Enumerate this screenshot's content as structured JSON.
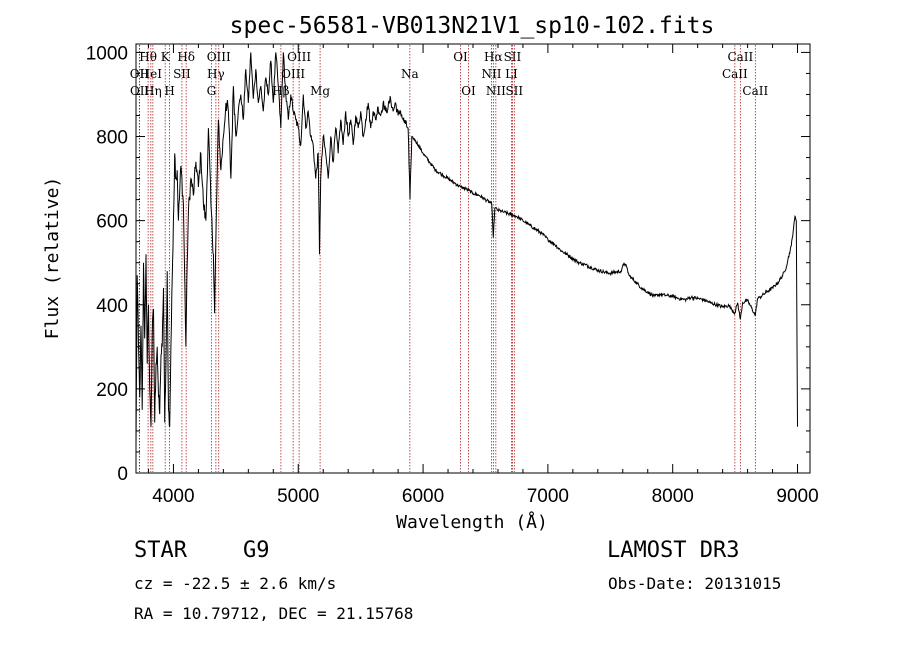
{
  "chart_data": {
    "type": "line",
    "title": "spec-56581-VB013N21V1_sp10-102.fits",
    "xlabel": "Wavelength (Å)",
    "ylabel": "Flux (relative)",
    "xlim": [
      3700,
      9100
    ],
    "ylim": [
      0,
      1020
    ],
    "xticks": [
      4000,
      5000,
      6000,
      7000,
      8000,
      9000
    ],
    "yticks": [
      0,
      200,
      400,
      600,
      800,
      1000
    ],
    "grid": false,
    "spectrum_anchors": [
      [
        3700,
        60
      ],
      [
        3710,
        470
      ],
      [
        3720,
        300
      ],
      [
        3730,
        180
      ],
      [
        3740,
        350
      ],
      [
        3750,
        150
      ],
      [
        3760,
        500
      ],
      [
        3770,
        320
      ],
      [
        3780,
        520
      ],
      [
        3790,
        260
      ],
      [
        3800,
        400
      ],
      [
        3810,
        200
      ],
      [
        3820,
        110
      ],
      [
        3830,
        330
      ],
      [
        3840,
        390
      ],
      [
        3850,
        120
      ],
      [
        3860,
        260
      ],
      [
        3870,
        300
      ],
      [
        3880,
        180
      ],
      [
        3890,
        140
      ],
      [
        3900,
        280
      ],
      [
        3910,
        300
      ],
      [
        3920,
        440
      ],
      [
        3930,
        120
      ],
      [
        3940,
        260
      ],
      [
        3950,
        480
      ],
      [
        3960,
        150
      ],
      [
        3970,
        110
      ],
      [
        3980,
        300
      ],
      [
        3990,
        460
      ],
      [
        4000,
        600
      ],
      [
        4010,
        760
      ],
      [
        4020,
        700
      ],
      [
        4030,
        720
      ],
      [
        4040,
        600
      ],
      [
        4060,
        730
      ],
      [
        4080,
        640
      ],
      [
        4100,
        300
      ],
      [
        4110,
        500
      ],
      [
        4120,
        620
      ],
      [
        4140,
        700
      ],
      [
        4160,
        660
      ],
      [
        4180,
        740
      ],
      [
        4200,
        680
      ],
      [
        4220,
        760
      ],
      [
        4240,
        640
      ],
      [
        4260,
        600
      ],
      [
        4280,
        820
      ],
      [
        4300,
        640
      ],
      [
        4320,
        520
      ],
      [
        4330,
        380
      ],
      [
        4340,
        560
      ],
      [
        4360,
        840
      ],
      [
        4380,
        720
      ],
      [
        4400,
        800
      ],
      [
        4420,
        880
      ],
      [
        4440,
        860
      ],
      [
        4460,
        700
      ],
      [
        4480,
        920
      ],
      [
        4500,
        800
      ],
      [
        4520,
        860
      ],
      [
        4540,
        900
      ],
      [
        4560,
        840
      ],
      [
        4580,
        960
      ],
      [
        4600,
        880
      ],
      [
        4620,
        1000
      ],
      [
        4640,
        890
      ],
      [
        4660,
        960
      ],
      [
        4680,
        880
      ],
      [
        4700,
        920
      ],
      [
        4720,
        860
      ],
      [
        4740,
        940
      ],
      [
        4760,
        900
      ],
      [
        4780,
        980
      ],
      [
        4800,
        880
      ],
      [
        4820,
        1000
      ],
      [
        4840,
        920
      ],
      [
        4860,
        820
      ],
      [
        4880,
        1000
      ],
      [
        4900,
        900
      ],
      [
        4920,
        840
      ],
      [
        4940,
        900
      ],
      [
        4960,
        860
      ],
      [
        4980,
        840
      ],
      [
        5000,
        820
      ],
      [
        5020,
        780
      ],
      [
        5040,
        900
      ],
      [
        5060,
        820
      ],
      [
        5080,
        860
      ],
      [
        5100,
        800
      ],
      [
        5120,
        780
      ],
      [
        5140,
        700
      ],
      [
        5160,
        760
      ],
      [
        5170,
        520
      ],
      [
        5180,
        700
      ],
      [
        5200,
        800
      ],
      [
        5220,
        760
      ],
      [
        5240,
        700
      ],
      [
        5260,
        800
      ],
      [
        5280,
        740
      ],
      [
        5300,
        820
      ],
      [
        5320,
        760
      ],
      [
        5340,
        840
      ],
      [
        5360,
        780
      ],
      [
        5380,
        860
      ],
      [
        5400,
        800
      ],
      [
        5420,
        840
      ],
      [
        5440,
        780
      ],
      [
        5460,
        850
      ],
      [
        5480,
        820
      ],
      [
        5500,
        860
      ],
      [
        5520,
        800
      ],
      [
        5540,
        840
      ],
      [
        5560,
        880
      ],
      [
        5580,
        820
      ],
      [
        5600,
        860
      ],
      [
        5620,
        840
      ],
      [
        5640,
        870
      ],
      [
        5660,
        850
      ],
      [
        5680,
        880
      ],
      [
        5700,
        860
      ],
      [
        5720,
        870
      ],
      [
        5740,
        890
      ],
      [
        5760,
        860
      ],
      [
        5780,
        880
      ],
      [
        5800,
        850
      ],
      [
        5820,
        860
      ],
      [
        5840,
        840
      ],
      [
        5860,
        830
      ],
      [
        5880,
        820
      ],
      [
        5895,
        650
      ],
      [
        5910,
        800
      ],
      [
        5940,
        790
      ],
      [
        5960,
        780
      ],
      [
        6000,
        760
      ],
      [
        6050,
        740
      ],
      [
        6100,
        720
      ],
      [
        6150,
        710
      ],
      [
        6200,
        700
      ],
      [
        6250,
        690
      ],
      [
        6300,
        680
      ],
      [
        6350,
        675
      ],
      [
        6400,
        665
      ],
      [
        6450,
        660
      ],
      [
        6500,
        650
      ],
      [
        6550,
        640
      ],
      [
        6563,
        560
      ],
      [
        6575,
        630
      ],
      [
        6600,
        625
      ],
      [
        6650,
        620
      ],
      [
        6700,
        615
      ],
      [
        6750,
        610
      ],
      [
        6800,
        600
      ],
      [
        6850,
        590
      ],
      [
        6900,
        580
      ],
      [
        6950,
        570
      ],
      [
        7000,
        555
      ],
      [
        7050,
        545
      ],
      [
        7100,
        530
      ],
      [
        7150,
        520
      ],
      [
        7200,
        510
      ],
      [
        7250,
        500
      ],
      [
        7300,
        495
      ],
      [
        7350,
        488
      ],
      [
        7400,
        482
      ],
      [
        7450,
        478
      ],
      [
        7500,
        475
      ],
      [
        7550,
        478
      ],
      [
        7590,
        480
      ],
      [
        7610,
        500
      ],
      [
        7630,
        490
      ],
      [
        7650,
        470
      ],
      [
        7700,
        455
      ],
      [
        7750,
        440
      ],
      [
        7800,
        430
      ],
      [
        7850,
        420
      ],
      [
        7900,
        425
      ],
      [
        7950,
        422
      ],
      [
        8000,
        420
      ],
      [
        8050,
        415
      ],
      [
        8100,
        412
      ],
      [
        8150,
        418
      ],
      [
        8200,
        415
      ],
      [
        8250,
        412
      ],
      [
        8300,
        405
      ],
      [
        8350,
        400
      ],
      [
        8400,
        395
      ],
      [
        8450,
        398
      ],
      [
        8498,
        380
      ],
      [
        8520,
        405
      ],
      [
        8542,
        365
      ],
      [
        8560,
        405
      ],
      [
        8600,
        410
      ],
      [
        8662,
        375
      ],
      [
        8680,
        415
      ],
      [
        8700,
        418
      ],
      [
        8750,
        430
      ],
      [
        8800,
        440
      ],
      [
        8850,
        455
      ],
      [
        8900,
        480
      ],
      [
        8950,
        540
      ],
      [
        8980,
        610
      ],
      [
        8990,
        600
      ],
      [
        9000,
        110
      ]
    ],
    "emission_lines": [
      {
        "label": "Hθ",
        "wavelength": 3797,
        "row": 0
      },
      {
        "label": "OII",
        "wavelength": 3727,
        "row": 1
      },
      {
        "label": "OII",
        "wavelength": 3729,
        "row": 2
      },
      {
        "label": "HeI",
        "wavelength": 3819,
        "row": 1
      },
      {
        "label": "Hη",
        "wavelength": 3835,
        "row": 2
      },
      {
        "label": "K",
        "wavelength": 3934,
        "row": 0
      },
      {
        "label": "SII",
        "wavelength": 4068,
        "row": 1
      },
      {
        "label": "H",
        "wavelength": 3969,
        "row": 2
      },
      {
        "label": "Hδ",
        "wavelength": 4102,
        "row": 0
      },
      {
        "label": "OIII",
        "wavelength": 4363,
        "row": 0
      },
      {
        "label": "Hγ",
        "wavelength": 4340,
        "row": 1
      },
      {
        "label": "G",
        "wavelength": 4304,
        "row": 2
      },
      {
        "label": "OIII",
        "wavelength": 5007,
        "row": 0
      },
      {
        "label": "OIII",
        "wavelength": 4959,
        "row": 1
      },
      {
        "label": "Hβ",
        "wavelength": 4861,
        "row": 2
      },
      {
        "label": "Mg",
        "wavelength": 5175,
        "row": 2
      },
      {
        "label": "Na",
        "wavelength": 5894,
        "row": 1
      },
      {
        "label": "OI",
        "wavelength": 6300,
        "row": 0
      },
      {
        "label": "OI",
        "wavelength": 6364,
        "row": 2
      },
      {
        "label": "Hα",
        "wavelength": 6563,
        "row": 0
      },
      {
        "label": "SII",
        "wavelength": 6716,
        "row": 0
      },
      {
        "label": "NII",
        "wavelength": 6548,
        "row": 1
      },
      {
        "label": "LI",
        "wavelength": 6708,
        "row": 1
      },
      {
        "label": "NII",
        "wavelength": 6583,
        "row": 2
      },
      {
        "label": "SII",
        "wavelength": 6731,
        "row": 2
      },
      {
        "label": "CaII",
        "wavelength": 8542,
        "row": 0
      },
      {
        "label": "CaII",
        "wavelength": 8498,
        "row": 1
      },
      {
        "label": "CaII",
        "wavelength": 8662,
        "row": 2
      }
    ]
  },
  "info": {
    "object_class": "STAR",
    "subclass": "G9",
    "survey": "LAMOST DR3",
    "redshift": "cz = -22.5 ± 2.6 km/s",
    "obs_date": "Obs-Date: 20131015",
    "coords": "RA =  10.79712, DEC =  21.15768"
  },
  "colors": {
    "spectrum": "#000000",
    "line_markers": "#b22222",
    "background": "#ffffff"
  }
}
